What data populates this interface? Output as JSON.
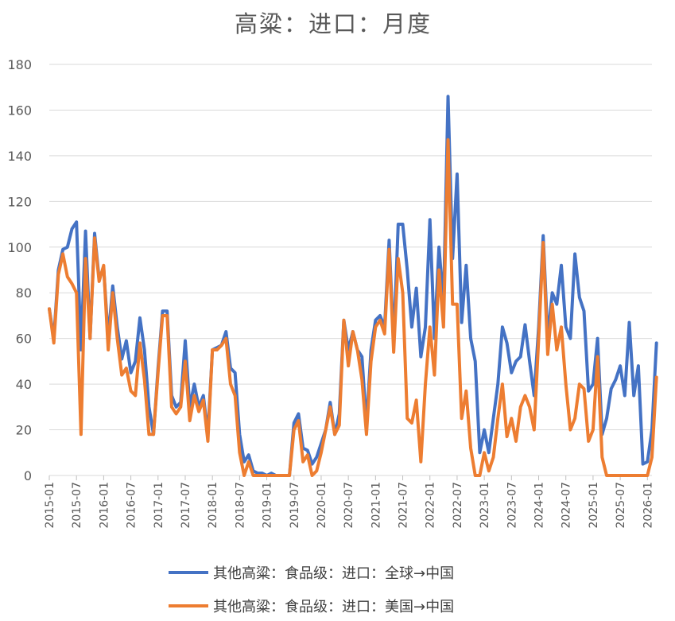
{
  "chart_data": {
    "type": "line",
    "title": "高粱：进口：月度",
    "xlabel": "",
    "ylabel": "",
    "ylim": [
      0,
      180
    ],
    "yticks": [
      0,
      20,
      40,
      60,
      80,
      100,
      120,
      140,
      160,
      180
    ],
    "grid": true,
    "legend": "bottom",
    "x_start": "2015-01",
    "x_end": "2026-02",
    "x_tick_labels": [
      "2015-01",
      "2015-07",
      "2016-01",
      "2016-07",
      "2017-01",
      "2017-07",
      "2018-01",
      "2018-07",
      "2019-01",
      "2019-07",
      "2020-01",
      "2020-07",
      "2021-01",
      "2021-07",
      "2022-01",
      "2022-07",
      "2023-01",
      "2023-07",
      "2024-01",
      "2024-07",
      "2025-01",
      "2025-07",
      "2026-01"
    ],
    "series": [
      {
        "name": "其他高粱：食品级：进口：全球→中国",
        "color": "#4472C4",
        "values": [
          73,
          60,
          90,
          99,
          100,
          108,
          111,
          55,
          107,
          60,
          106,
          86,
          91,
          60,
          83,
          65,
          51,
          59,
          45,
          50,
          69,
          55,
          30,
          18,
          47,
          72,
          72,
          35,
          30,
          32,
          59,
          30,
          40,
          30,
          35,
          18,
          55,
          56,
          57,
          63,
          47,
          45,
          18,
          6,
          9,
          2,
          1,
          1,
          0,
          1,
          0,
          0,
          0,
          0,
          23,
          27,
          12,
          11,
          5,
          8,
          14,
          20,
          32,
          18,
          27,
          68,
          55,
          63,
          55,
          52,
          22,
          55,
          68,
          70,
          65,
          103,
          58,
          110,
          110,
          90,
          65,
          82,
          52,
          65,
          112,
          60,
          100,
          75,
          166,
          95,
          132,
          67,
          92,
          60,
          50,
          10,
          20,
          10,
          25,
          40,
          65,
          58,
          45,
          50,
          52,
          66,
          50,
          35,
          65,
          105,
          60,
          80,
          75,
          92,
          65,
          60,
          97,
          78,
          72,
          37,
          40,
          60,
          18,
          25,
          38,
          42,
          48,
          35,
          67,
          35,
          48,
          5,
          6,
          20,
          58
        ],
        "name_label": "其他高粱：食品级：进口：全球→中国"
      },
      {
        "name": "其他高粱：食品级：进口：美国→中国",
        "color": "#ED7D31",
        "values": [
          73,
          58,
          88,
          97,
          87,
          84,
          80,
          18,
          95,
          60,
          104,
          85,
          92,
          55,
          80,
          60,
          44,
          47,
          37,
          35,
          58,
          42,
          18,
          18,
          45,
          70,
          70,
          30,
          27,
          30,
          50,
          24,
          35,
          28,
          33,
          15,
          55,
          55,
          57,
          60,
          40,
          35,
          10,
          0,
          6,
          0,
          0,
          0,
          0,
          0,
          0,
          0,
          0,
          0,
          20,
          24,
          6,
          9,
          0,
          2,
          10,
          20,
          30,
          18,
          22,
          68,
          48,
          63,
          55,
          42,
          18,
          50,
          65,
          68,
          62,
          99,
          54,
          95,
          80,
          25,
          23,
          33,
          6,
          40,
          65,
          44,
          90,
          65,
          147,
          75,
          75,
          25,
          37,
          12,
          0,
          0,
          10,
          2,
          8,
          25,
          40,
          17,
          25,
          15,
          30,
          35,
          30,
          20,
          60,
          102,
          53,
          75,
          55,
          65,
          40,
          20,
          25,
          40,
          38,
          15,
          20,
          52,
          8,
          0,
          0,
          0,
          0,
          0,
          0,
          0,
          0,
          0,
          0,
          8,
          43
        ]
      }
    ]
  }
}
